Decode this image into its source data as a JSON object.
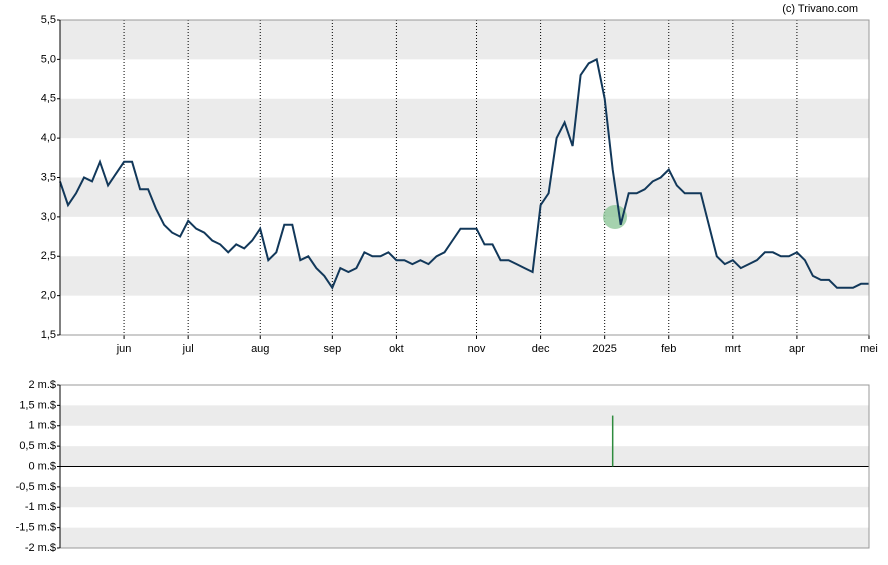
{
  "source": "(c) Trivano.com",
  "chart_data": [
    {
      "type": "line",
      "color": "#12385a",
      "categories": [
        null,
        null,
        null,
        null,
        null,
        null,
        null,
        null,
        "jun",
        null,
        null,
        null,
        null,
        null,
        null,
        null,
        "jul",
        null,
        null,
        null,
        null,
        null,
        null,
        null,
        null,
        "aug",
        null,
        null,
        null,
        null,
        null,
        null,
        null,
        null,
        "sep",
        null,
        null,
        null,
        null,
        null,
        null,
        null,
        "okt",
        null,
        null,
        null,
        null,
        null,
        null,
        null,
        null,
        null,
        "nov",
        null,
        null,
        null,
        null,
        null,
        null,
        null,
        "dec",
        null,
        null,
        null,
        null,
        null,
        null,
        null,
        "2025",
        null,
        null,
        null,
        null,
        null,
        null,
        null,
        "feb",
        null,
        null,
        null,
        null,
        null,
        null,
        null,
        "mrt",
        null,
        null,
        null,
        null,
        null,
        null,
        null,
        "apr",
        null,
        null,
        null,
        null,
        null,
        null,
        null,
        null,
        "mei"
      ],
      "values": [
        3.45,
        3.15,
        3.3,
        3.5,
        3.45,
        3.7,
        3.4,
        3.55,
        3.7,
        3.7,
        3.35,
        3.35,
        3.1,
        2.9,
        2.8,
        2.75,
        2.95,
        2.85,
        2.8,
        2.7,
        2.65,
        2.55,
        2.65,
        2.6,
        2.7,
        2.85,
        2.45,
        2.55,
        2.9,
        2.9,
        2.45,
        2.5,
        2.35,
        2.25,
        2.1,
        2.35,
        2.3,
        2.35,
        2.55,
        2.5,
        2.5,
        2.55,
        2.45,
        2.45,
        2.4,
        2.45,
        2.4,
        2.5,
        2.55,
        2.7,
        2.85,
        2.85,
        2.85,
        2.65,
        2.65,
        2.45,
        2.45,
        2.4,
        2.35,
        2.3,
        3.15,
        3.3,
        4.0,
        4.2,
        3.9,
        4.8,
        4.95,
        5.0,
        4.5,
        3.6,
        2.9,
        3.3,
        3.3,
        3.35,
        3.45,
        3.5,
        3.6,
        3.4,
        3.3,
        3.3,
        3.3,
        2.9,
        2.5,
        2.4,
        2.45,
        2.35,
        2.4,
        2.45,
        2.55,
        2.55,
        2.5,
        2.5,
        2.55,
        2.45,
        2.25,
        2.2,
        2.2,
        2.1,
        2.1,
        2.1,
        2.15,
        2.15
      ],
      "ylim": [
        1.5,
        5.5
      ],
      "yticks": [
        {
          "value": 1.5,
          "label": "1,5"
        },
        {
          "value": 2,
          "label": "2,0"
        },
        {
          "value": 2.5,
          "label": "2,5"
        },
        {
          "value": 3,
          "label": "3,0"
        },
        {
          "value": 3.5,
          "label": "3,5"
        },
        {
          "value": 4,
          "label": "4,0"
        },
        {
          "value": 4.5,
          "label": "4,5"
        },
        {
          "value": 5,
          "label": "5,0"
        },
        {
          "value": 5.5,
          "label": "5,5"
        }
      ],
      "grid": true
    },
    {
      "type": "bar",
      "color": "#2e8b3e",
      "values": [
        null,
        null,
        null,
        null,
        null,
        null,
        null,
        null,
        null,
        null,
        null,
        null,
        null,
        null,
        null,
        null,
        null,
        null,
        null,
        null,
        null,
        null,
        null,
        null,
        null,
        null,
        null,
        null,
        null,
        null,
        null,
        null,
        null,
        null,
        null,
        null,
        null,
        null,
        null,
        null,
        null,
        null,
        null,
        null,
        null,
        null,
        null,
        null,
        null,
        null,
        null,
        null,
        null,
        null,
        null,
        null,
        null,
        null,
        null,
        null,
        null,
        null,
        null,
        null,
        null,
        null,
        null,
        null,
        null,
        1.25,
        null,
        null,
        null,
        null,
        null,
        null,
        null,
        null,
        null,
        null,
        null,
        null,
        null,
        null,
        null,
        null,
        null,
        null,
        null,
        null,
        null,
        null,
        null,
        null,
        null,
        null,
        null,
        null,
        null,
        null,
        null,
        null
      ],
      "ylim": [
        -2,
        2
      ],
      "yticks": [
        {
          "value": -2,
          "label": "-2 m.$"
        },
        {
          "value": -1.5,
          "label": "-1,5 m.$"
        },
        {
          "value": -1,
          "label": "-1 m.$"
        },
        {
          "value": -0.5,
          "label": "-0,5 m.$"
        },
        {
          "value": 0,
          "label": "0 m.$"
        },
        {
          "value": 0.5,
          "label": "0,5 m.$"
        },
        {
          "value": 1,
          "label": "1 m.$"
        },
        {
          "value": 1.5,
          "label": "1,5 m.$"
        },
        {
          "value": 2,
          "label": "2 m.$"
        }
      ]
    }
  ]
}
